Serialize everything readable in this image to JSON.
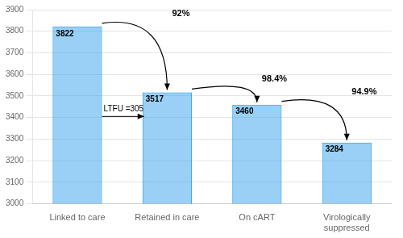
{
  "chart_data": {
    "type": "bar",
    "categories": [
      "Linked to care",
      "Retained in care",
      "On cART",
      "Virologically\nsuppressed"
    ],
    "values": [
      3822,
      3517,
      3460,
      3284
    ],
    "ylim": [
      3000,
      3900
    ],
    "yticks": [
      3000,
      3100,
      3200,
      3300,
      3400,
      3500,
      3600,
      3700,
      3800,
      3900
    ],
    "grid": true,
    "data_labels": true,
    "annotations": [
      "92%",
      "98.4%",
      "94.9%",
      "LTFU =305"
    ]
  }
}
